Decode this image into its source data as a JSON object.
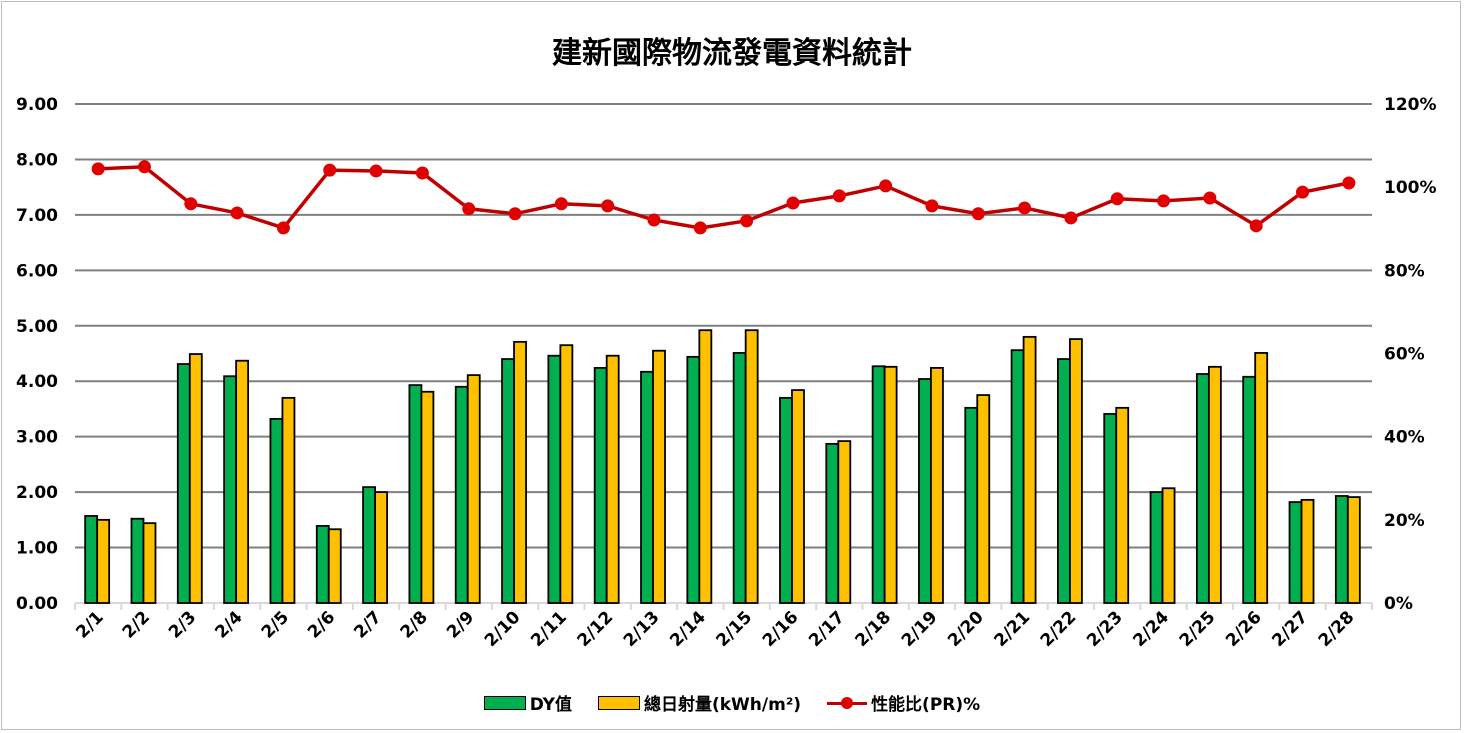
{
  "chart_data": {
    "type": "bar+line",
    "title": "建新國際物流發電資料統計",
    "categories": [
      "2/1",
      "2/2",
      "2/3",
      "2/4",
      "2/5",
      "2/6",
      "2/7",
      "2/8",
      "2/9",
      "2/10",
      "2/11",
      "2/12",
      "2/13",
      "2/14",
      "2/15",
      "2/16",
      "2/17",
      "2/18",
      "2/19",
      "2/20",
      "2/21",
      "2/22",
      "2/23",
      "2/24",
      "2/25",
      "2/26",
      "2/27",
      "2/28"
    ],
    "series": [
      {
        "name": "DY值",
        "type": "bar",
        "axis": "left",
        "color": "#00b050",
        "values": [
          1.57,
          1.52,
          4.31,
          4.09,
          3.32,
          1.39,
          2.09,
          3.93,
          3.9,
          4.4,
          4.46,
          4.24,
          4.17,
          4.44,
          4.51,
          3.7,
          2.87,
          4.27,
          4.04,
          3.52,
          4.56,
          4.4,
          3.41,
          2.0,
          4.13,
          4.08,
          1.82,
          1.93
        ]
      },
      {
        "name": "總日射量(kWh/m²)",
        "type": "bar",
        "axis": "left",
        "color": "#ffc000",
        "values": [
          1.5,
          1.44,
          4.49,
          4.37,
          3.7,
          1.33,
          2.0,
          3.81,
          4.11,
          4.71,
          4.65,
          4.46,
          4.55,
          4.92,
          4.92,
          3.84,
          2.92,
          4.26,
          4.24,
          3.75,
          4.8,
          4.76,
          3.52,
          2.07,
          4.26,
          4.51,
          1.86,
          1.91
        ]
      },
      {
        "name": "性能比(PR)%",
        "type": "line",
        "axis": "right",
        "color": "#c00000",
        "values": [
          104.4,
          104.9,
          96.0,
          93.8,
          90.2,
          104.1,
          103.9,
          103.4,
          94.8,
          93.6,
          96.0,
          95.5,
          92.1,
          90.2,
          91.9,
          96.2,
          97.9,
          100.3,
          95.5,
          93.6,
          95.0,
          92.6,
          97.2,
          96.7,
          97.4,
          90.7,
          98.8,
          101.0
        ]
      }
    ],
    "y_left": {
      "range": [
        0,
        9
      ],
      "ticks": [
        "0.00",
        "1.00",
        "2.00",
        "3.00",
        "4.00",
        "5.00",
        "6.00",
        "7.00",
        "8.00",
        "9.00"
      ]
    },
    "y_right": {
      "range": [
        0,
        120
      ],
      "ticks": [
        "0%",
        "20%",
        "40%",
        "60%",
        "80%",
        "100%",
        "120%"
      ]
    },
    "grid": true,
    "legend": "bottom"
  }
}
